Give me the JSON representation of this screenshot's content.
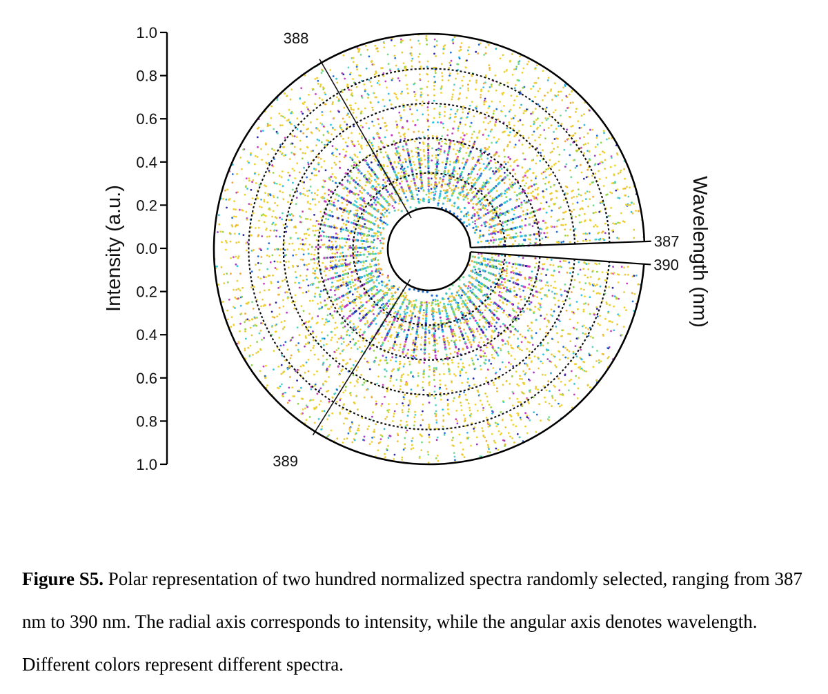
{
  "figure": {
    "label": "Figure S5.",
    "caption": " Polar representation of two hundred normalized spectra randomly selected, ranging from 387 nm to 390 nm. The radial axis corresponds to intensity, while the angular axis denotes wavelength. Different colors represent different spectra."
  },
  "chart_data": {
    "type": "scatter",
    "projection": "polar",
    "radial_axis": {
      "label": "Intensity (a.u.)",
      "ticks_upper": [
        "1.0",
        "0.8",
        "0.6",
        "0.4",
        "0.2",
        "0.0"
      ],
      "ticks_lower": [
        "0.2",
        "0.4",
        "0.6",
        "0.8",
        "1.0"
      ],
      "range": [
        0,
        1
      ],
      "rings": [
        0.2,
        0.4,
        0.6,
        0.8
      ]
    },
    "angular_axis": {
      "label": "Wavelength (nm)",
      "range_nm": [
        387,
        390
      ],
      "tick_labels": [
        "387",
        "388",
        "389",
        "390"
      ]
    },
    "series_count": 200,
    "series_colors": [
      "#f2d22e",
      "#e8c93a",
      "#3fb8d8",
      "#1f6fd6",
      "#2a2aa8",
      "#a13fc4",
      "#c93fc0",
      "#8fd84a",
      "#5ad1c0",
      "#f2a83a",
      "#6fdc8c",
      "#27c7e8"
    ],
    "grid": true,
    "legend": "none"
  }
}
